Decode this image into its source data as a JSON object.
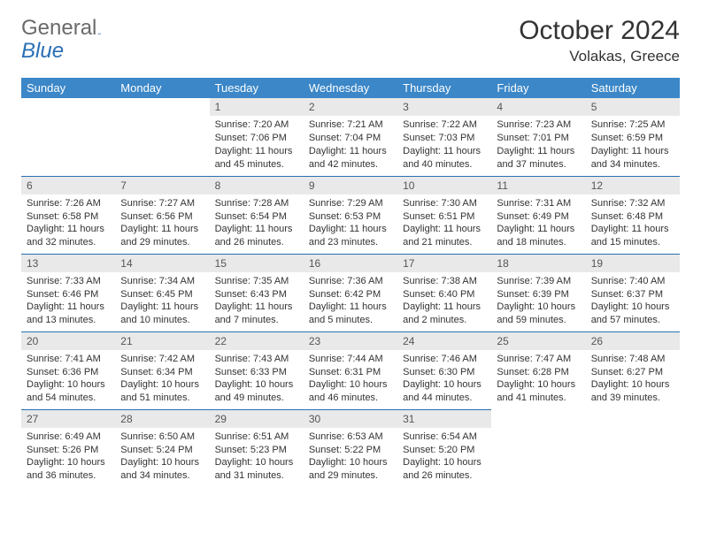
{
  "logo": {
    "text1": "General",
    "text2": "Blue"
  },
  "title": {
    "month": "October 2024",
    "location": "Volakas, Greece"
  },
  "styling": {
    "header_bg": "#3b87c8",
    "header_fg": "#ffffff",
    "border_color": "#2a6fb5",
    "daynum_bg": "#e9e9e9",
    "body_font_size": 11,
    "header_font_size": 13,
    "title_font_size": 30,
    "location_font_size": 17,
    "page_bg": "#ffffff",
    "columns": 7,
    "rows": 5
  },
  "days": [
    "Sunday",
    "Monday",
    "Tuesday",
    "Wednesday",
    "Thursday",
    "Friday",
    "Saturday"
  ],
  "cells": [
    null,
    null,
    {
      "n": "1",
      "sr": "7:20 AM",
      "ss": "7:06 PM",
      "dl": "11 hours and 45 minutes."
    },
    {
      "n": "2",
      "sr": "7:21 AM",
      "ss": "7:04 PM",
      "dl": "11 hours and 42 minutes."
    },
    {
      "n": "3",
      "sr": "7:22 AM",
      "ss": "7:03 PM",
      "dl": "11 hours and 40 minutes."
    },
    {
      "n": "4",
      "sr": "7:23 AM",
      "ss": "7:01 PM",
      "dl": "11 hours and 37 minutes."
    },
    {
      "n": "5",
      "sr": "7:25 AM",
      "ss": "6:59 PM",
      "dl": "11 hours and 34 minutes."
    },
    {
      "n": "6",
      "sr": "7:26 AM",
      "ss": "6:58 PM",
      "dl": "11 hours and 32 minutes."
    },
    {
      "n": "7",
      "sr": "7:27 AM",
      "ss": "6:56 PM",
      "dl": "11 hours and 29 minutes."
    },
    {
      "n": "8",
      "sr": "7:28 AM",
      "ss": "6:54 PM",
      "dl": "11 hours and 26 minutes."
    },
    {
      "n": "9",
      "sr": "7:29 AM",
      "ss": "6:53 PM",
      "dl": "11 hours and 23 minutes."
    },
    {
      "n": "10",
      "sr": "7:30 AM",
      "ss": "6:51 PM",
      "dl": "11 hours and 21 minutes."
    },
    {
      "n": "11",
      "sr": "7:31 AM",
      "ss": "6:49 PM",
      "dl": "11 hours and 18 minutes."
    },
    {
      "n": "12",
      "sr": "7:32 AM",
      "ss": "6:48 PM",
      "dl": "11 hours and 15 minutes."
    },
    {
      "n": "13",
      "sr": "7:33 AM",
      "ss": "6:46 PM",
      "dl": "11 hours and 13 minutes."
    },
    {
      "n": "14",
      "sr": "7:34 AM",
      "ss": "6:45 PM",
      "dl": "11 hours and 10 minutes."
    },
    {
      "n": "15",
      "sr": "7:35 AM",
      "ss": "6:43 PM",
      "dl": "11 hours and 7 minutes."
    },
    {
      "n": "16",
      "sr": "7:36 AM",
      "ss": "6:42 PM",
      "dl": "11 hours and 5 minutes."
    },
    {
      "n": "17",
      "sr": "7:38 AM",
      "ss": "6:40 PM",
      "dl": "11 hours and 2 minutes."
    },
    {
      "n": "18",
      "sr": "7:39 AM",
      "ss": "6:39 PM",
      "dl": "10 hours and 59 minutes."
    },
    {
      "n": "19",
      "sr": "7:40 AM",
      "ss": "6:37 PM",
      "dl": "10 hours and 57 minutes."
    },
    {
      "n": "20",
      "sr": "7:41 AM",
      "ss": "6:36 PM",
      "dl": "10 hours and 54 minutes."
    },
    {
      "n": "21",
      "sr": "7:42 AM",
      "ss": "6:34 PM",
      "dl": "10 hours and 51 minutes."
    },
    {
      "n": "22",
      "sr": "7:43 AM",
      "ss": "6:33 PM",
      "dl": "10 hours and 49 minutes."
    },
    {
      "n": "23",
      "sr": "7:44 AM",
      "ss": "6:31 PM",
      "dl": "10 hours and 46 minutes."
    },
    {
      "n": "24",
      "sr": "7:46 AM",
      "ss": "6:30 PM",
      "dl": "10 hours and 44 minutes."
    },
    {
      "n": "25",
      "sr": "7:47 AM",
      "ss": "6:28 PM",
      "dl": "10 hours and 41 minutes."
    },
    {
      "n": "26",
      "sr": "7:48 AM",
      "ss": "6:27 PM",
      "dl": "10 hours and 39 minutes."
    },
    {
      "n": "27",
      "sr": "6:49 AM",
      "ss": "5:26 PM",
      "dl": "10 hours and 36 minutes."
    },
    {
      "n": "28",
      "sr": "6:50 AM",
      "ss": "5:24 PM",
      "dl": "10 hours and 34 minutes."
    },
    {
      "n": "29",
      "sr": "6:51 AM",
      "ss": "5:23 PM",
      "dl": "10 hours and 31 minutes."
    },
    {
      "n": "30",
      "sr": "6:53 AM",
      "ss": "5:22 PM",
      "dl": "10 hours and 29 minutes."
    },
    {
      "n": "31",
      "sr": "6:54 AM",
      "ss": "5:20 PM",
      "dl": "10 hours and 26 minutes."
    },
    null,
    null
  ],
  "labels": {
    "sunrise": "Sunrise: ",
    "sunset": "Sunset: ",
    "daylight": "Daylight: "
  }
}
